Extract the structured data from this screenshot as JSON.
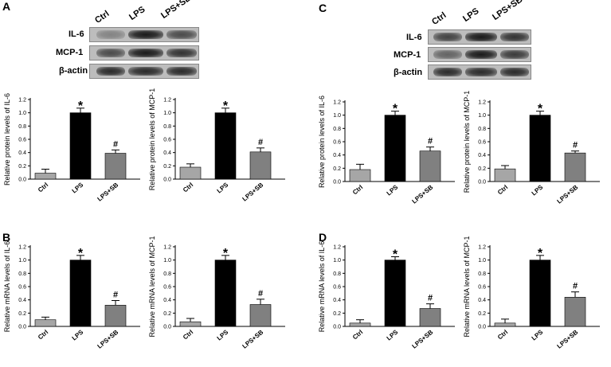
{
  "panels": {
    "A": "A",
    "B": "B",
    "C": "C",
    "D": "D"
  },
  "blots": [
    {
      "lanes": [
        "Ctrl",
        "LPS",
        "LPS+SB"
      ],
      "rows": [
        {
          "label": "IL-6",
          "intensities": [
            0.35,
            1.0,
            0.7
          ]
        },
        {
          "label": "MCP-1",
          "intensities": [
            0.7,
            1.0,
            0.85
          ]
        },
        {
          "label": "β-actin",
          "intensities": [
            0.9,
            0.9,
            0.9
          ]
        }
      ]
    },
    {
      "lanes": [
        "Ctrl",
        "LPS",
        "LPS+SB"
      ],
      "rows": [
        {
          "label": "IL-6",
          "intensities": [
            0.75,
            1.0,
            0.85
          ]
        },
        {
          "label": "MCP-1",
          "intensities": [
            0.55,
            1.0,
            0.8
          ]
        },
        {
          "label": "β-actin",
          "intensities": [
            0.9,
            0.9,
            0.9
          ]
        }
      ]
    }
  ],
  "chart_data": [
    {
      "type": "bar",
      "panel": "A",
      "categories": [
        "Ctrl",
        "LPS",
        "LPS+SB"
      ],
      "values": [
        0.09,
        1.0,
        0.39
      ],
      "errors": [
        0.06,
        0.07,
        0.05
      ],
      "annotations": [
        "",
        "*",
        "#"
      ],
      "ylabel": "Relative protein levels of IL-6",
      "ylim": [
        0,
        1.2
      ],
      "yticks": [
        "0.0",
        "0.2",
        "0.4",
        "0.6",
        "0.8",
        "1.0",
        "1.2"
      ],
      "colors": [
        "#a6a6a6",
        "#000000",
        "#808080"
      ]
    },
    {
      "type": "bar",
      "panel": "A",
      "categories": [
        "Ctrl",
        "LPS",
        "LPS+SB"
      ],
      "values": [
        0.18,
        1.0,
        0.41
      ],
      "errors": [
        0.05,
        0.07,
        0.06
      ],
      "annotations": [
        "",
        "*",
        "#"
      ],
      "ylabel": "Relative protein levels of MCP-1",
      "ylim": [
        0,
        1.2
      ],
      "yticks": [
        "0.0",
        "0.2",
        "0.4",
        "0.6",
        "0.8",
        "1.0",
        "1.2"
      ],
      "colors": [
        "#a6a6a6",
        "#000000",
        "#808080"
      ]
    },
    {
      "type": "bar",
      "panel": "C",
      "categories": [
        "Ctrl",
        "LPS",
        "LPS+SB"
      ],
      "values": [
        0.18,
        1.0,
        0.46
      ],
      "errors": [
        0.08,
        0.06,
        0.06
      ],
      "annotations": [
        "",
        "*",
        "#"
      ],
      "ylabel": "Relative protein levels of IL-6",
      "ylim": [
        0,
        1.2
      ],
      "yticks": [
        "0.0",
        "0.2",
        "0.4",
        "0.6",
        "0.8",
        "1.0",
        "1.2"
      ],
      "colors": [
        "#a6a6a6",
        "#000000",
        "#808080"
      ]
    },
    {
      "type": "bar",
      "panel": "C",
      "categories": [
        "Ctrl",
        "LPS",
        "LPS+SB"
      ],
      "values": [
        0.19,
        1.0,
        0.43
      ],
      "errors": [
        0.05,
        0.06,
        0.03
      ],
      "annotations": [
        "",
        "*",
        "#"
      ],
      "ylabel": "Relative protein levels of MCP-1",
      "ylim": [
        0,
        1.2
      ],
      "yticks": [
        "0.0",
        "0.2",
        "0.4",
        "0.6",
        "0.8",
        "1.0",
        "1.2"
      ],
      "colors": [
        "#a6a6a6",
        "#000000",
        "#808080"
      ]
    },
    {
      "type": "bar",
      "panel": "B",
      "categories": [
        "Ctrl",
        "LPS",
        "LPS+SB"
      ],
      "values": [
        0.1,
        1.0,
        0.32
      ],
      "errors": [
        0.04,
        0.07,
        0.07
      ],
      "annotations": [
        "",
        "*",
        "#"
      ],
      "ylabel": "Relative mRNA levels of IL-6",
      "ylim": [
        0,
        1.2
      ],
      "yticks": [
        "0.0",
        "0.2",
        "0.4",
        "0.6",
        "0.8",
        "1.0",
        "1.2"
      ],
      "colors": [
        "#a6a6a6",
        "#000000",
        "#808080"
      ]
    },
    {
      "type": "bar",
      "panel": "B",
      "categories": [
        "Ctrl",
        "LPS",
        "LPS+SB"
      ],
      "values": [
        0.07,
        1.0,
        0.33
      ],
      "errors": [
        0.05,
        0.07,
        0.08
      ],
      "annotations": [
        "",
        "*",
        "#"
      ],
      "ylabel": "Relative mRNA levels of MCP-1",
      "ylim": [
        0,
        1.2
      ],
      "yticks": [
        "0.0",
        "0.2",
        "0.4",
        "0.6",
        "0.8",
        "1.0",
        "1.2"
      ],
      "colors": [
        "#a6a6a6",
        "#000000",
        "#808080"
      ]
    },
    {
      "type": "bar",
      "panel": "D",
      "categories": [
        "Ctrl",
        "LPS",
        "LPS+SB"
      ],
      "values": [
        0.05,
        1.0,
        0.27
      ],
      "errors": [
        0.05,
        0.05,
        0.07
      ],
      "annotations": [
        "",
        "*",
        "#"
      ],
      "ylabel": "Relative mRNA levels of IL-6",
      "ylim": [
        0,
        1.2
      ],
      "yticks": [
        "0.0",
        "0.2",
        "0.4",
        "0.6",
        "0.8",
        "1.0",
        "1.2"
      ],
      "colors": [
        "#a6a6a6",
        "#000000",
        "#808080"
      ]
    },
    {
      "type": "bar",
      "panel": "D",
      "categories": [
        "Ctrl",
        "LPS",
        "LPS+SB"
      ],
      "values": [
        0.05,
        1.0,
        0.44
      ],
      "errors": [
        0.06,
        0.07,
        0.08
      ],
      "annotations": [
        "",
        "*",
        "#"
      ],
      "ylabel": "Relative mRNA levels of MCP-1",
      "ylim": [
        0,
        1.2
      ],
      "yticks": [
        "0.0",
        "0.2",
        "0.4",
        "0.6",
        "0.8",
        "1.0",
        "1.2"
      ],
      "colors": [
        "#a6a6a6",
        "#000000",
        "#808080"
      ]
    }
  ]
}
